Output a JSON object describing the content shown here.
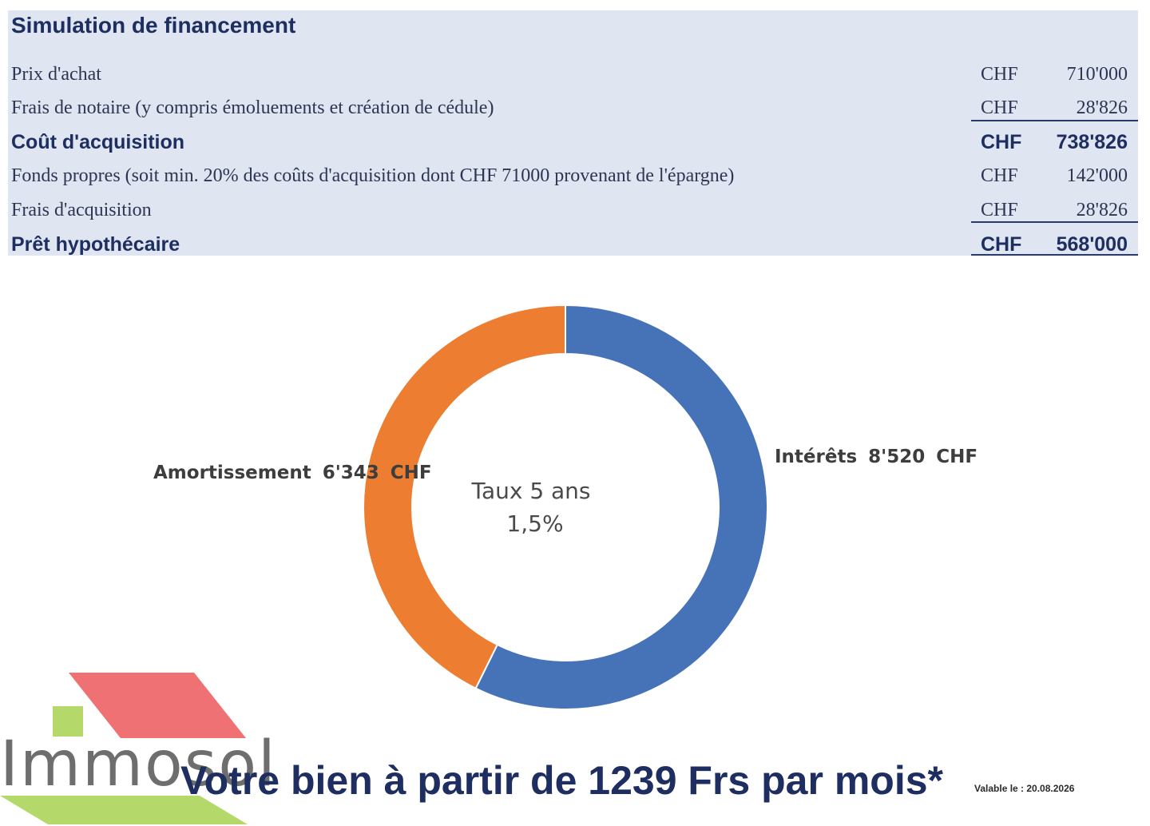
{
  "summary": {
    "title": "Simulation de financement",
    "rows": [
      {
        "label": "Prix d'achat",
        "currency": "CHF",
        "amount": "710'000"
      },
      {
        "label": "Frais de notaire (y compris émoluements et création de cédule)",
        "currency": "CHF",
        "amount": "28'826"
      },
      {
        "label": "Coût d'acquisition",
        "currency": "CHF",
        "amount": "738'826"
      },
      {
        "label": "Fonds propres (soit min. 20% des coûts d'acquisition dont CHF 71000 provenant de l'épargne)",
        "currency": "CHF",
        "amount": "142'000"
      },
      {
        "label": "Frais d'acquisition",
        "currency": "CHF",
        "amount": "28'826"
      },
      {
        "label": "Prêt hypothécaire",
        "currency": "CHF",
        "amount": "568'000"
      }
    ]
  },
  "chart_data": {
    "type": "pie",
    "donut": true,
    "categories": [
      "Intérêts",
      "Amortissement"
    ],
    "values": [
      8520,
      6343
    ],
    "value_labels": [
      "8'520",
      "6'343"
    ],
    "unit": "CHF",
    "colors": [
      "#4672b8",
      "#ed7d31"
    ],
    "center_text": [
      "Taux 5 ans",
      "1,5%"
    ]
  },
  "branding": {
    "logo_text": "Immosol",
    "colors": {
      "roof": "#f07173",
      "window": "#b5d86a",
      "base": "#b5d86a"
    }
  },
  "headline": "Votre bien à partir de 1239 Frs par mois*",
  "validity": "Valable le : 20.08.2026"
}
